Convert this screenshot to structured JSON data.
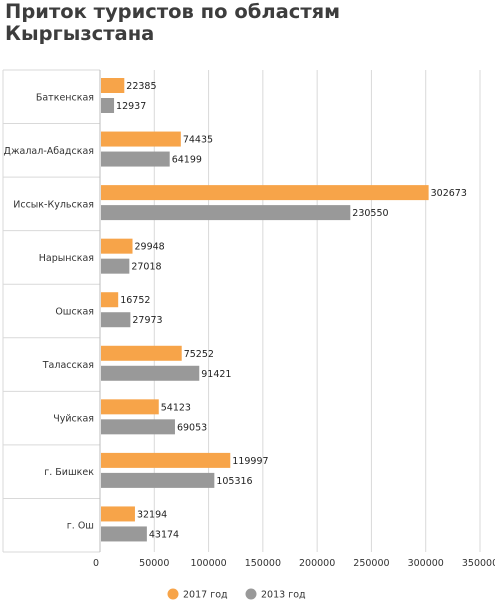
{
  "chart_data": {
    "type": "bar",
    "orientation": "horizontal",
    "title": "Приток туристов по областям Кыргызстана",
    "categories": [
      "Баткенская",
      "Джалал-Абадская",
      "Иссык-Кульская",
      "Нарынская",
      "Ошская",
      "Таласская",
      "Чуйская",
      "г. Бишкек",
      "г. Ош"
    ],
    "series": [
      {
        "name": "2017 год",
        "color": "#f7a449",
        "values": [
          22385,
          74435,
          302673,
          29948,
          16752,
          75252,
          54123,
          119997,
          32194
        ]
      },
      {
        "name": "2013 год",
        "color": "#999999",
        "values": [
          12937,
          64199,
          230550,
          27018,
          27973,
          91421,
          69053,
          105316,
          43174
        ]
      }
    ],
    "xlim": [
      0,
      350000
    ],
    "xticks": [
      "0",
      "50000",
      "100000",
      "150000",
      "200000",
      "250000",
      "300000",
      "350000"
    ],
    "grid": true,
    "legend_position": "bottom"
  }
}
